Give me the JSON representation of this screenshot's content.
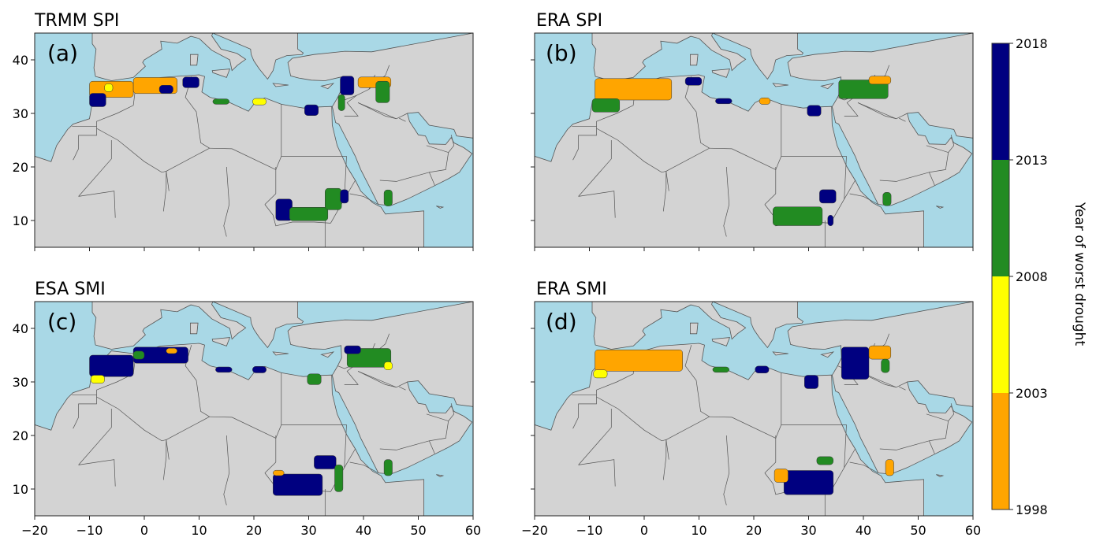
{
  "panels": [
    {
      "title": "TRMM SPI",
      "label": "(a)",
      "regions": [
        {
          "lon": -6,
          "lat": 34.5,
          "lon_span": 8,
          "lat_span": 3,
          "period": "1998-2003"
        },
        {
          "lon": 2,
          "lat": 35.2,
          "lon_span": 8,
          "lat_span": 3,
          "period": "1998-2003"
        },
        {
          "lon": -8.5,
          "lat": 32.5,
          "lon_span": 3,
          "lat_span": 2.5,
          "period": "2013-2018"
        },
        {
          "lon": -6.5,
          "lat": 34.8,
          "lon_span": 1.5,
          "lat_span": 1.5,
          "period": "2003-2008"
        },
        {
          "lon": 8.5,
          "lat": 35.8,
          "lon_span": 3,
          "lat_span": 2,
          "period": "2013-2018"
        },
        {
          "lon": 4,
          "lat": 34.5,
          "lon_span": 2.5,
          "lat_span": 1.5,
          "period": "2013-2018"
        },
        {
          "lon": 14,
          "lat": 32.2,
          "lon_span": 3,
          "lat_span": 1,
          "period": "2008-2013"
        },
        {
          "lon": 21,
          "lat": 32.2,
          "lon_span": 2.5,
          "lat_span": 1.2,
          "period": "2003-2008"
        },
        {
          "lon": 30.5,
          "lat": 30.6,
          "lon_span": 2.5,
          "lat_span": 2,
          "period": "2013-2018"
        },
        {
          "lon": 37,
          "lat": 35.2,
          "lon_span": 2.5,
          "lat_span": 3.5,
          "period": "2013-2018"
        },
        {
          "lon": 42,
          "lat": 35.8,
          "lon_span": 6,
          "lat_span": 2,
          "period": "1998-2003"
        },
        {
          "lon": 43.5,
          "lat": 34,
          "lon_span": 2.5,
          "lat_span": 4,
          "period": "2008-2013"
        },
        {
          "lon": 36,
          "lat": 32,
          "lon_span": 1.2,
          "lat_span": 3,
          "period": "2008-2013"
        },
        {
          "lon": 25.5,
          "lat": 12,
          "lon_span": 3,
          "lat_span": 4,
          "period": "2013-2018"
        },
        {
          "lon": 30,
          "lat": 11.2,
          "lon_span": 7,
          "lat_span": 2.5,
          "period": "2008-2013"
        },
        {
          "lon": 34.5,
          "lat": 14,
          "lon_span": 3,
          "lat_span": 4,
          "period": "2008-2013"
        },
        {
          "lon": 36.5,
          "lat": 14.5,
          "lon_span": 1.5,
          "lat_span": 2.5,
          "period": "2013-2018"
        },
        {
          "lon": 44.5,
          "lat": 14.2,
          "lon_span": 1.5,
          "lat_span": 3,
          "period": "2008-2013"
        }
      ]
    },
    {
      "title": "ERA SPI",
      "label": "(b)",
      "regions": [
        {
          "lon": -2,
          "lat": 34.5,
          "lon_span": 14,
          "lat_span": 4,
          "period": "1998-2003"
        },
        {
          "lon": -7,
          "lat": 31.5,
          "lon_span": 5,
          "lat_span": 2.5,
          "period": "2008-2013"
        },
        {
          "lon": 9,
          "lat": 36,
          "lon_span": 3,
          "lat_span": 1.5,
          "period": "2013-2018"
        },
        {
          "lon": 14.5,
          "lat": 32.3,
          "lon_span": 3,
          "lat_span": 1,
          "period": "2013-2018"
        },
        {
          "lon": 22,
          "lat": 32.3,
          "lon_span": 2,
          "lat_span": 1.2,
          "period": "1998-2003"
        },
        {
          "lon": 31,
          "lat": 30.5,
          "lon_span": 2.5,
          "lat_span": 2,
          "period": "2013-2018"
        },
        {
          "lon": 40,
          "lat": 34.5,
          "lon_span": 9,
          "lat_span": 3.5,
          "period": "2008-2013"
        },
        {
          "lon": 43,
          "lat": 36.2,
          "lon_span": 4,
          "lat_span": 1.5,
          "period": "1998-2003"
        },
        {
          "lon": 28,
          "lat": 10.8,
          "lon_span": 9,
          "lat_span": 3.5,
          "period": "2008-2013"
        },
        {
          "lon": 33.5,
          "lat": 14.5,
          "lon_span": 3,
          "lat_span": 2.5,
          "period": "2013-2018"
        },
        {
          "lon": 34,
          "lat": 10,
          "lon_span": 1,
          "lat_span": 2,
          "period": "2013-2018"
        },
        {
          "lon": 44.3,
          "lat": 14,
          "lon_span": 1.5,
          "lat_span": 2.5,
          "period": "2008-2013"
        }
      ]
    },
    {
      "title": "ESA SMI",
      "label": "(c)",
      "regions": [
        {
          "lon": -6,
          "lat": 33,
          "lon_span": 8,
          "lat_span": 4,
          "period": "2013-2018"
        },
        {
          "lon": 3,
          "lat": 35,
          "lon_span": 10,
          "lat_span": 3,
          "period": "2013-2018"
        },
        {
          "lon": -8.5,
          "lat": 30.5,
          "lon_span": 2.5,
          "lat_span": 1.5,
          "period": "2003-2008"
        },
        {
          "lon": -1,
          "lat": 35,
          "lon_span": 2,
          "lat_span": 1.5,
          "period": "2008-2013"
        },
        {
          "lon": 5,
          "lat": 35.8,
          "lon_span": 2,
          "lat_span": 1,
          "period": "1998-2003"
        },
        {
          "lon": 14.5,
          "lat": 32.3,
          "lon_span": 3,
          "lat_span": 1,
          "period": "2013-2018"
        },
        {
          "lon": 21,
          "lat": 32.3,
          "lon_span": 2.5,
          "lat_span": 1.2,
          "period": "2013-2018"
        },
        {
          "lon": 31,
          "lat": 30.5,
          "lon_span": 2.5,
          "lat_span": 2,
          "period": "2008-2013"
        },
        {
          "lon": 41,
          "lat": 34.5,
          "lon_span": 8,
          "lat_span": 3.5,
          "period": "2008-2013"
        },
        {
          "lon": 38,
          "lat": 36,
          "lon_span": 3,
          "lat_span": 1.5,
          "period": "2013-2018"
        },
        {
          "lon": 44.5,
          "lat": 33,
          "lon_span": 1.5,
          "lat_span": 1.5,
          "period": "2003-2008"
        },
        {
          "lon": 28,
          "lat": 10.8,
          "lon_span": 9,
          "lat_span": 4,
          "period": "2013-2018"
        },
        {
          "lon": 33,
          "lat": 15,
          "lon_span": 4,
          "lat_span": 2.5,
          "period": "2013-2018"
        },
        {
          "lon": 35.5,
          "lat": 12,
          "lon_span": 1.5,
          "lat_span": 5,
          "period": "2008-2013"
        },
        {
          "lon": 24.5,
          "lat": 13,
          "lon_span": 2,
          "lat_span": 1,
          "period": "1998-2003"
        },
        {
          "lon": 44.5,
          "lat": 14,
          "lon_span": 1.5,
          "lat_span": 3,
          "period": "2008-2013"
        }
      ]
    },
    {
      "title": "ERA SMI",
      "label": "(d)",
      "regions": [
        {
          "lon": -1,
          "lat": 34,
          "lon_span": 16,
          "lat_span": 4,
          "period": "1998-2003"
        },
        {
          "lon": -8,
          "lat": 31.5,
          "lon_span": 2.5,
          "lat_span": 1.5,
          "period": "2003-2008"
        },
        {
          "lon": 14,
          "lat": 32.3,
          "lon_span": 3,
          "lat_span": 1,
          "period": "2008-2013"
        },
        {
          "lon": 21.5,
          "lat": 32.3,
          "lon_span": 2.5,
          "lat_span": 1.3,
          "period": "2013-2018"
        },
        {
          "lon": 30.5,
          "lat": 30,
          "lon_span": 2.5,
          "lat_span": 2.5,
          "period": "2013-2018"
        },
        {
          "lon": 38.5,
          "lat": 33.5,
          "lon_span": 5,
          "lat_span": 6,
          "period": "2013-2018"
        },
        {
          "lon": 43,
          "lat": 35.5,
          "lon_span": 4,
          "lat_span": 2.5,
          "period": "1998-2003"
        },
        {
          "lon": 44,
          "lat": 33,
          "lon_span": 1.5,
          "lat_span": 2.5,
          "period": "2008-2013"
        },
        {
          "lon": 30,
          "lat": 11.2,
          "lon_span": 9,
          "lat_span": 4.5,
          "period": "2013-2018"
        },
        {
          "lon": 33,
          "lat": 15.3,
          "lon_span": 3,
          "lat_span": 1.5,
          "period": "2008-2013"
        },
        {
          "lon": 25,
          "lat": 12.5,
          "lon_span": 2.5,
          "lat_span": 2.5,
          "period": "1998-2003"
        },
        {
          "lon": 44.8,
          "lat": 14,
          "lon_span": 1.5,
          "lat_span": 3,
          "period": "1998-2003"
        }
      ]
    }
  ],
  "axes": {
    "lon_range": [
      -20,
      60
    ],
    "lat_range": [
      5,
      45
    ],
    "x_ticks": [
      "−20",
      "−10",
      "0",
      "10",
      "20",
      "30",
      "40",
      "50",
      "60"
    ],
    "y_ticks": [
      "40",
      "30",
      "20",
      "10"
    ]
  },
  "colorbar": {
    "label": "Year of worst drought",
    "ticks": [
      "2018",
      "2013",
      "2008",
      "2003",
      "1998"
    ],
    "bins": [
      {
        "period": "2013-2018",
        "color": "#000080"
      },
      {
        "period": "2008-2013",
        "color": "#228b22"
      },
      {
        "period": "2003-2008",
        "color": "#ffff00"
      },
      {
        "period": "1998-2003",
        "color": "#ffa500"
      }
    ]
  },
  "colors": {
    "sea": "#a9d8e6",
    "land": "#d3d3d3",
    "border": "#555555"
  }
}
